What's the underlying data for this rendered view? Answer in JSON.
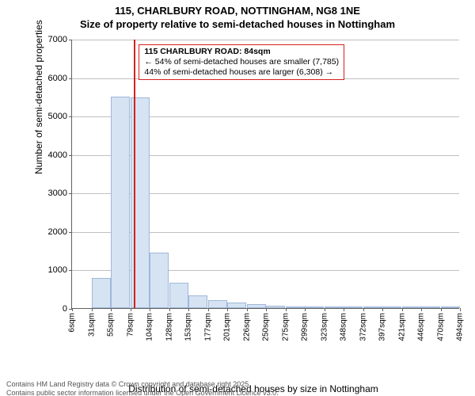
{
  "title_line1": "115, CHARLBURY ROAD, NOTTINGHAM, NG8 1NE",
  "title_line2": "Size of property relative to semi-detached houses in Nottingham",
  "chart": {
    "type": "histogram",
    "ylabel": "Number of semi-detached properties",
    "xlabel": "Distribution of semi-detached houses by size in Nottingham",
    "ylim": [
      0,
      7000
    ],
    "yticks": [
      0,
      1000,
      2000,
      3000,
      4000,
      5000,
      6000,
      7000
    ],
    "grid_color": "#c0c0c0",
    "axis_color": "#606060",
    "bar_fill": "#d6e3f3",
    "bar_border": "#9fb8d9",
    "background_color": "#ffffff",
    "bar_width_ratio": 0.98,
    "label_fontsize": 12,
    "tick_fontsize": 11,
    "xtick_fontsize": 10,
    "xtick_labels": [
      "6sqm",
      "31sqm",
      "55sqm",
      "79sqm",
      "104sqm",
      "128sqm",
      "153sqm",
      "177sqm",
      "201sqm",
      "226sqm",
      "250sqm",
      "275sqm",
      "299sqm",
      "323sqm",
      "348sqm",
      "372sqm",
      "397sqm",
      "421sqm",
      "446sqm",
      "470sqm",
      "494sqm"
    ],
    "values": [
      0,
      780,
      5500,
      5480,
      1440,
      650,
      320,
      210,
      150,
      100,
      70,
      50,
      30,
      20,
      15,
      10,
      8,
      6,
      4,
      2
    ],
    "reference_line": {
      "position_index": 3.2,
      "color": "#d62020"
    },
    "callout": {
      "border_color": "#d62020",
      "background": "#ffffff",
      "fontsize": 10.5,
      "title": "115 CHARLBURY ROAD: 84sqm",
      "line2": "← 54% of semi-detached houses are smaller (7,785)",
      "line3": "44% of semi-detached houses are larger (6,308) →"
    }
  },
  "footer_line1": "Contains HM Land Registry data © Crown copyright and database right 2025.",
  "footer_line2": "Contains public sector information licensed under the Open Government Licence v3.0."
}
